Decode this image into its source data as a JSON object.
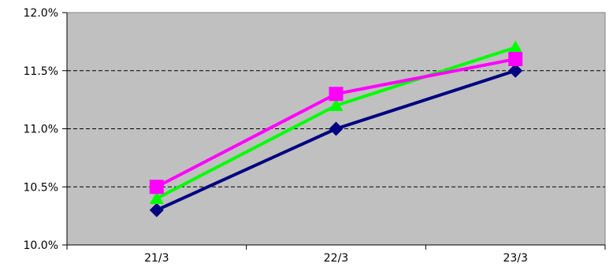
{
  "chart_data": {
    "type": "line",
    "categories": [
      "21/3",
      "22/3",
      "23/3"
    ],
    "ylim": [
      0.1,
      0.12
    ],
    "yticks": [
      0.1,
      0.105,
      0.11,
      0.115,
      0.12
    ],
    "ytick_labels": [
      "10.0%",
      "10.5%",
      "11.0%",
      "11.5%",
      "12.0%"
    ],
    "xtick_labels": [
      "21/3",
      "22/3",
      "23/3"
    ],
    "grid": "horizontal dashed",
    "plot_background": "#c0c0c0",
    "title": "",
    "xlabel": "",
    "ylabel": "",
    "series": [
      {
        "color": "#000080",
        "marker": "diamond",
        "values": [
          0.103,
          0.11,
          0.115
        ]
      },
      {
        "color": "#00ff00",
        "marker": "triangle",
        "values": [
          0.104,
          0.112,
          0.117
        ]
      },
      {
        "color": "#ff00ff",
        "marker": "square",
        "values": [
          0.105,
          0.113,
          0.116
        ]
      }
    ]
  }
}
